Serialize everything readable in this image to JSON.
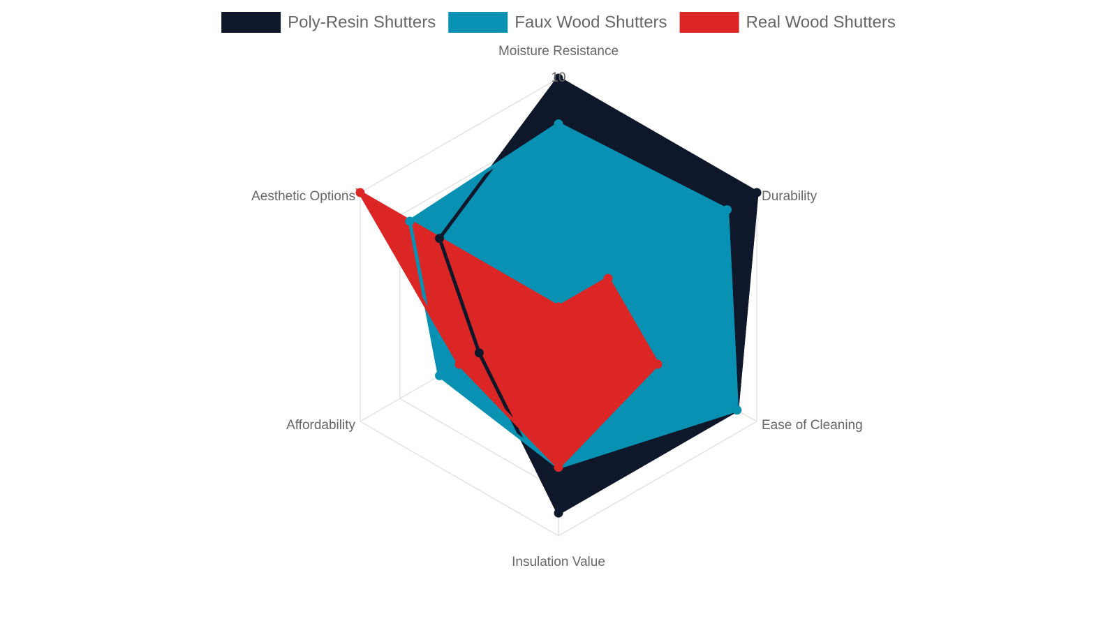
{
  "chart_data": {
    "type": "radar",
    "axes": [
      "Moisture Resistance",
      "Durability",
      "Ease of Cleaning",
      "Insulation Value",
      "Affordability",
      "Aesthetic Options"
    ],
    "range": [
      0,
      10
    ],
    "tick_step": 2,
    "max_tick_label": "10",
    "grid": true,
    "legend_position": "top-center",
    "series": [
      {
        "name": "Poly-Resin Shutters",
        "values": [
          10,
          10,
          9,
          9,
          4,
          6
        ],
        "color": "#0f172a"
      },
      {
        "name": "Faux Wood Shutters",
        "values": [
          8,
          8.5,
          9,
          7,
          6,
          7.5
        ],
        "color": "#0891b2"
      },
      {
        "name": "Real Wood Shutters",
        "values": [
          0,
          2.5,
          5,
          7,
          5,
          10
        ],
        "color": "#dc2626"
      }
    ]
  }
}
